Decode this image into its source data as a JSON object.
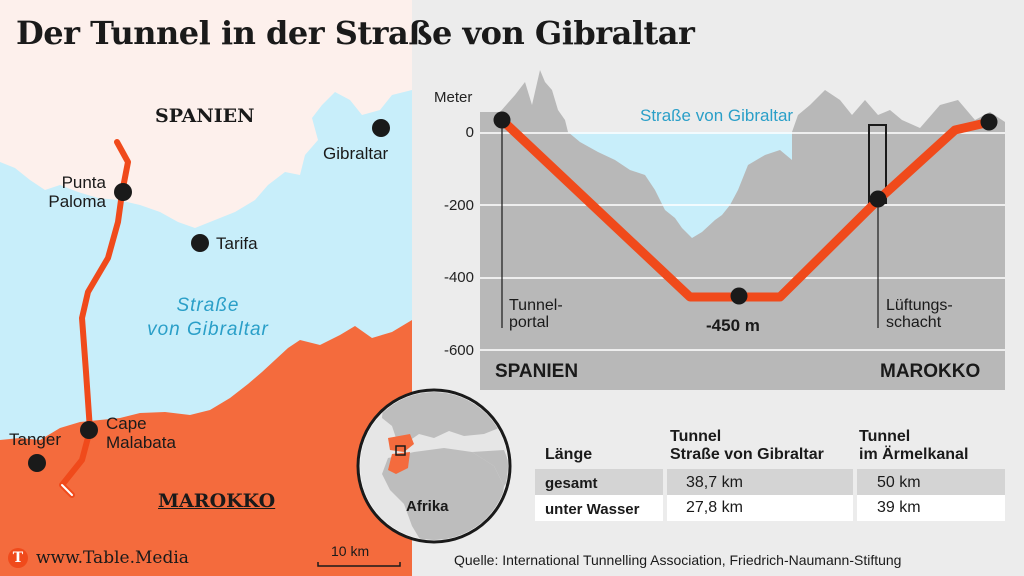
{
  "title": "Der Tunnel in der Straße von Gibraltar",
  "map": {
    "spain_label": "SPANIEN",
    "morocco_label": "MAROKKO",
    "strait_label_line1": "Straße",
    "strait_label_line2": "von Gibraltar",
    "places": {
      "gibraltar": "Gibraltar",
      "punta_paloma_1": "Punta",
      "punta_paloma_2": "Paloma",
      "tarifa": "Tarifa",
      "tanger": "Tanger",
      "cape_malabata_1": "Cape",
      "cape_malabata_2": "Malabata"
    },
    "scale_label": "10 km",
    "inset_label": "Afrika",
    "brand": "www.Table.Media",
    "brand_logo_letter": "T"
  },
  "profile": {
    "y_axis_title": "Meter",
    "y_ticks": [
      "0",
      "-200",
      "-400",
      "-600"
    ],
    "water_label": "Straße von Gibraltar",
    "portal_label_1": "Tunnel-",
    "portal_label_2": "portal",
    "depth_label": "-450 m",
    "shaft_label_1": "Lüftungs-",
    "shaft_label_2": "schacht",
    "left_country": "SPANIEN",
    "right_country": "MAROKKO"
  },
  "table": {
    "col0_header": "Länge",
    "col1_header_1": "Tunnel",
    "col1_header_2": "Straße von Gibraltar",
    "col2_header_1": "Tunnel",
    "col2_header_2": "im Ärmelkanal",
    "rows": [
      {
        "label": "gesamt",
        "gibraltar": "38,7 km",
        "channel": "50 km"
      },
      {
        "label": "unter Wasser",
        "gibraltar": "27,8 km",
        "channel": "39 km"
      }
    ]
  },
  "source": "Quelle: International Tunnelling Association, Friedrich-Naumann-Stiftung",
  "colors": {
    "accent": "#f04a1b",
    "water": "#c8eefa",
    "land_spain": "#fdf0ec",
    "land_morocco": "#f46b3d",
    "profile_rock": "#b8b8b8",
    "water_text": "#2a9fc8"
  }
}
